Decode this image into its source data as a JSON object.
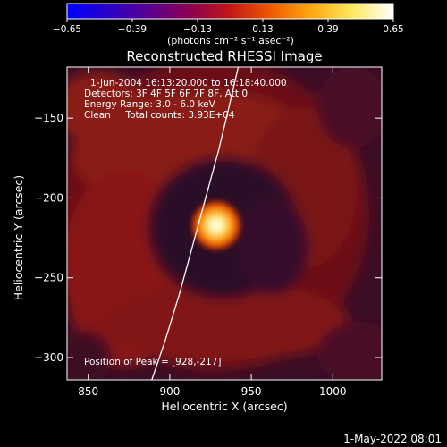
{
  "chart_data": {
    "type": "heatmap",
    "title": "Reconstructed RHESSI Image",
    "xlabel": "Heliocentric X (arcsec)",
    "ylabel": "Heliocentric Y (arcsec)",
    "xlim": [
      837,
      1030
    ],
    "ylim": [
      -314,
      -118
    ],
    "x_ticks": [
      850,
      900,
      950,
      1000
    ],
    "x_tick_labels": [
      "850",
      "900",
      "950",
      "1000"
    ],
    "y_ticks": [
      -150,
      -200,
      -250,
      -300
    ],
    "y_tick_labels": [
      "-150",
      "-200",
      "-250",
      "-300"
    ],
    "colorbar": {
      "min": -0.65,
      "max": 0.65,
      "ticks": [
        -0.65,
        -0.39,
        -0.13,
        0.13,
        0.39,
        0.65
      ],
      "tick_labels": [
        "-0.65",
        "-0.39",
        "-0.13",
        "0.13",
        "0.39",
        "0.65"
      ],
      "unit_label": "(photons cm⁻² s⁻¹ asec⁻²)",
      "colormap": [
        "#0000ff",
        "#2a00c8",
        "#5a0090",
        "#8c0050",
        "#c21814",
        "#ee5a00",
        "#ffaa10",
        "#ffe860",
        "#ffffff"
      ]
    },
    "annotations": [
      "1-Jun-2004 16:13:20.000 to 16:18:40.000",
      "Detectors: 3F 4F 5F 6F 7F 8F, Att 0",
      "Energy Range: 3.0 - 6.0 keV",
      "Clean     Total counts: 3.93E+04"
    ],
    "peak_label": "Position of Peak = [928,-217]",
    "peak": {
      "x": 928,
      "y": -217,
      "value": 0.65
    },
    "limb_curve": {
      "x": [
        889,
        897,
        906,
        914,
        922,
        930,
        937,
        942
      ],
      "y": [
        -314,
        -290,
        -260,
        -230,
        -200,
        -170,
        -140,
        -118
      ]
    },
    "grid": false
  },
  "footer_timestamp": "1-May-2022 08:01"
}
